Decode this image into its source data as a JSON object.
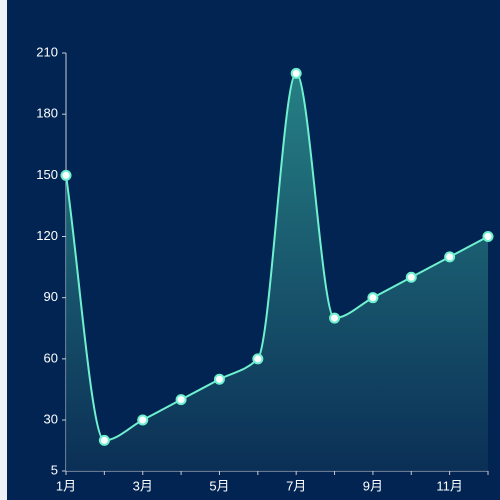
{
  "chart_data": {
    "type": "line",
    "categories": [
      "1月",
      null,
      "3月",
      null,
      "5月",
      null,
      "7月",
      null,
      "9月",
      null,
      "11月",
      null
    ],
    "values": [
      150,
      20,
      30,
      40,
      50,
      60,
      200,
      80,
      90,
      100,
      110,
      120
    ],
    "color": "#6ff0cf",
    "ylim": [
      5,
      210
    ],
    "yticks": [
      5,
      30,
      60,
      90,
      120,
      150,
      180,
      210
    ],
    "smooth": true,
    "area": true
  }
}
